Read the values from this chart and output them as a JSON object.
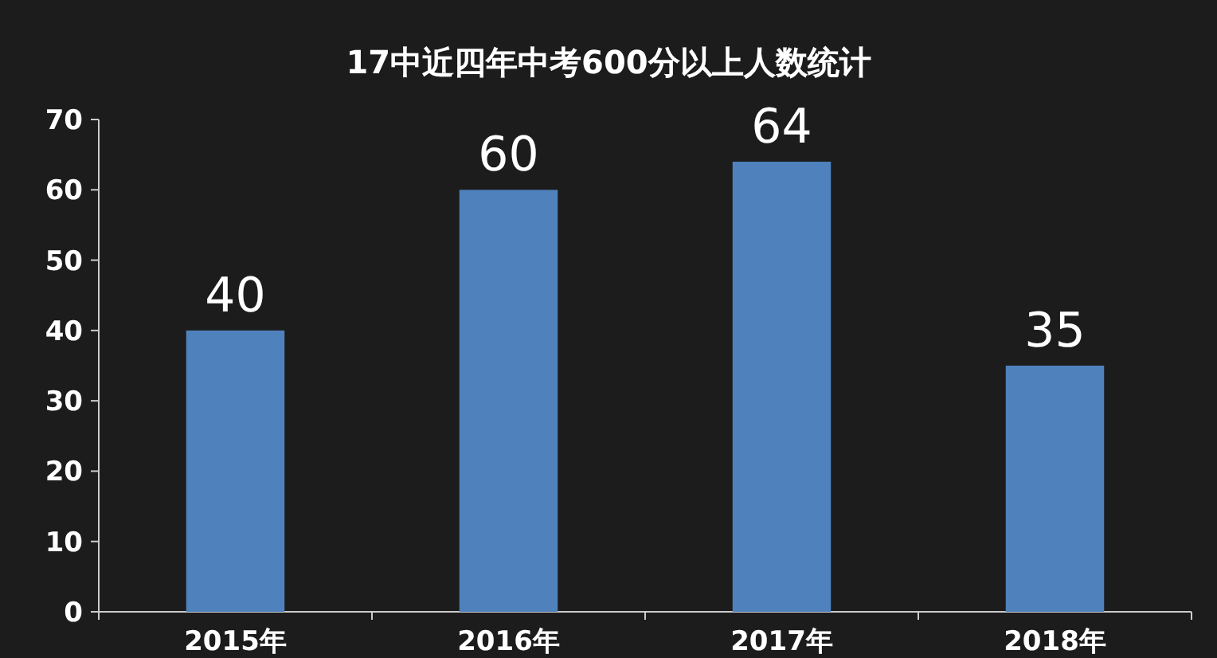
{
  "chart_data": {
    "type": "bar",
    "title": "17中近四年中考600分以上人数统计",
    "categories": [
      "2015年",
      "2016年",
      "2017年",
      "2018年"
    ],
    "values": [
      40,
      60,
      64,
      35
    ],
    "color": "#4f81bd",
    "ylim": [
      0,
      70
    ],
    "yticks": [
      0,
      10,
      20,
      30,
      40,
      50,
      60,
      70
    ],
    "data_labels": true
  }
}
